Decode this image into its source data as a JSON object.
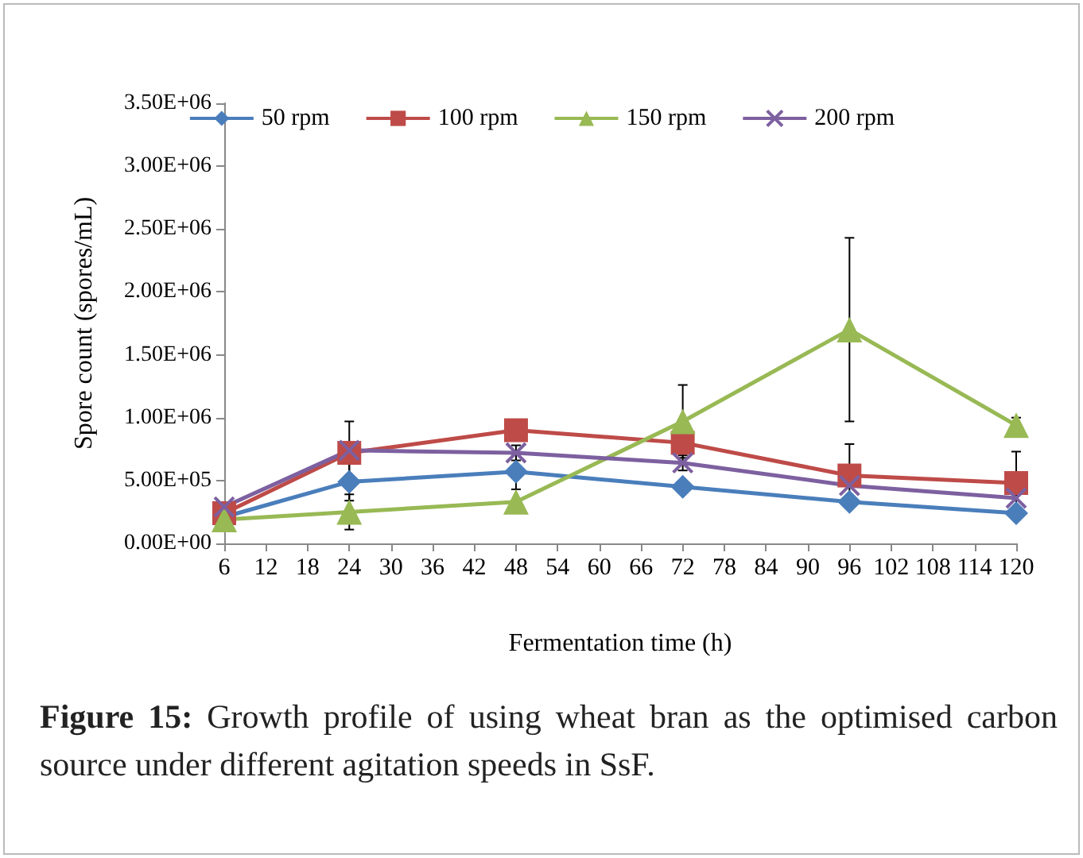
{
  "chart_data": {
    "type": "line",
    "xlabel": "Fermentation time (h)",
    "ylabel": "Spore count (spores/mL)",
    "annotations": [
      "Figure 15: Growth profile of using wheat bran as the optimised carbon source under different agitation speeds in SsF."
    ],
    "x": [
      6,
      24,
      48,
      72,
      96,
      120
    ],
    "xlim": [
      6,
      120
    ],
    "xticks": [
      6,
      12,
      18,
      24,
      30,
      36,
      42,
      48,
      54,
      60,
      66,
      72,
      78,
      84,
      90,
      96,
      102,
      108,
      114,
      120
    ],
    "ylim": [
      0,
      3500000
    ],
    "yticks": [
      {
        "value": 0,
        "label": "0.00E+00"
      },
      {
        "value": 500000,
        "label": "5.00E+05"
      },
      {
        "value": 1000000,
        "label": "1.00E+06"
      },
      {
        "value": 1500000,
        "label": "1.50E+06"
      },
      {
        "value": 2000000,
        "label": "2.00E+06"
      },
      {
        "value": 2500000,
        "label": "2.50E+06"
      },
      {
        "value": 3000000,
        "label": "3.00E+06"
      },
      {
        "value": 3500000,
        "label": "3.50E+06"
      }
    ],
    "grid": false,
    "legend": "top",
    "series": [
      {
        "name": "50 rpm",
        "color": "#4a7ebb",
        "marker": "diamond",
        "values": [
          210000,
          490000,
          570000,
          450000,
          330000,
          240000
        ],
        "errors": [
          null,
          150000,
          140000,
          null,
          null,
          null
        ]
      },
      {
        "name": "100 rpm",
        "color": "#be4b48",
        "marker": "square",
        "values": [
          240000,
          720000,
          900000,
          800000,
          540000,
          480000
        ],
        "errors": [
          null,
          250000,
          null,
          null,
          250000,
          250000
        ]
      },
      {
        "name": "150 rpm",
        "color": "#98b954",
        "marker": "triangle",
        "values": [
          190000,
          250000,
          330000,
          970000,
          1700000,
          940000
        ],
        "errors": [
          null,
          140000,
          null,
          290000,
          730000,
          60000
        ]
      },
      {
        "name": "200 rpm",
        "color": "#7d60a0",
        "marker": "cross",
        "values": [
          290000,
          740000,
          720000,
          640000,
          460000,
          360000
        ],
        "errors": [
          null,
          null,
          60000,
          60000,
          null,
          null
        ]
      }
    ]
  }
}
